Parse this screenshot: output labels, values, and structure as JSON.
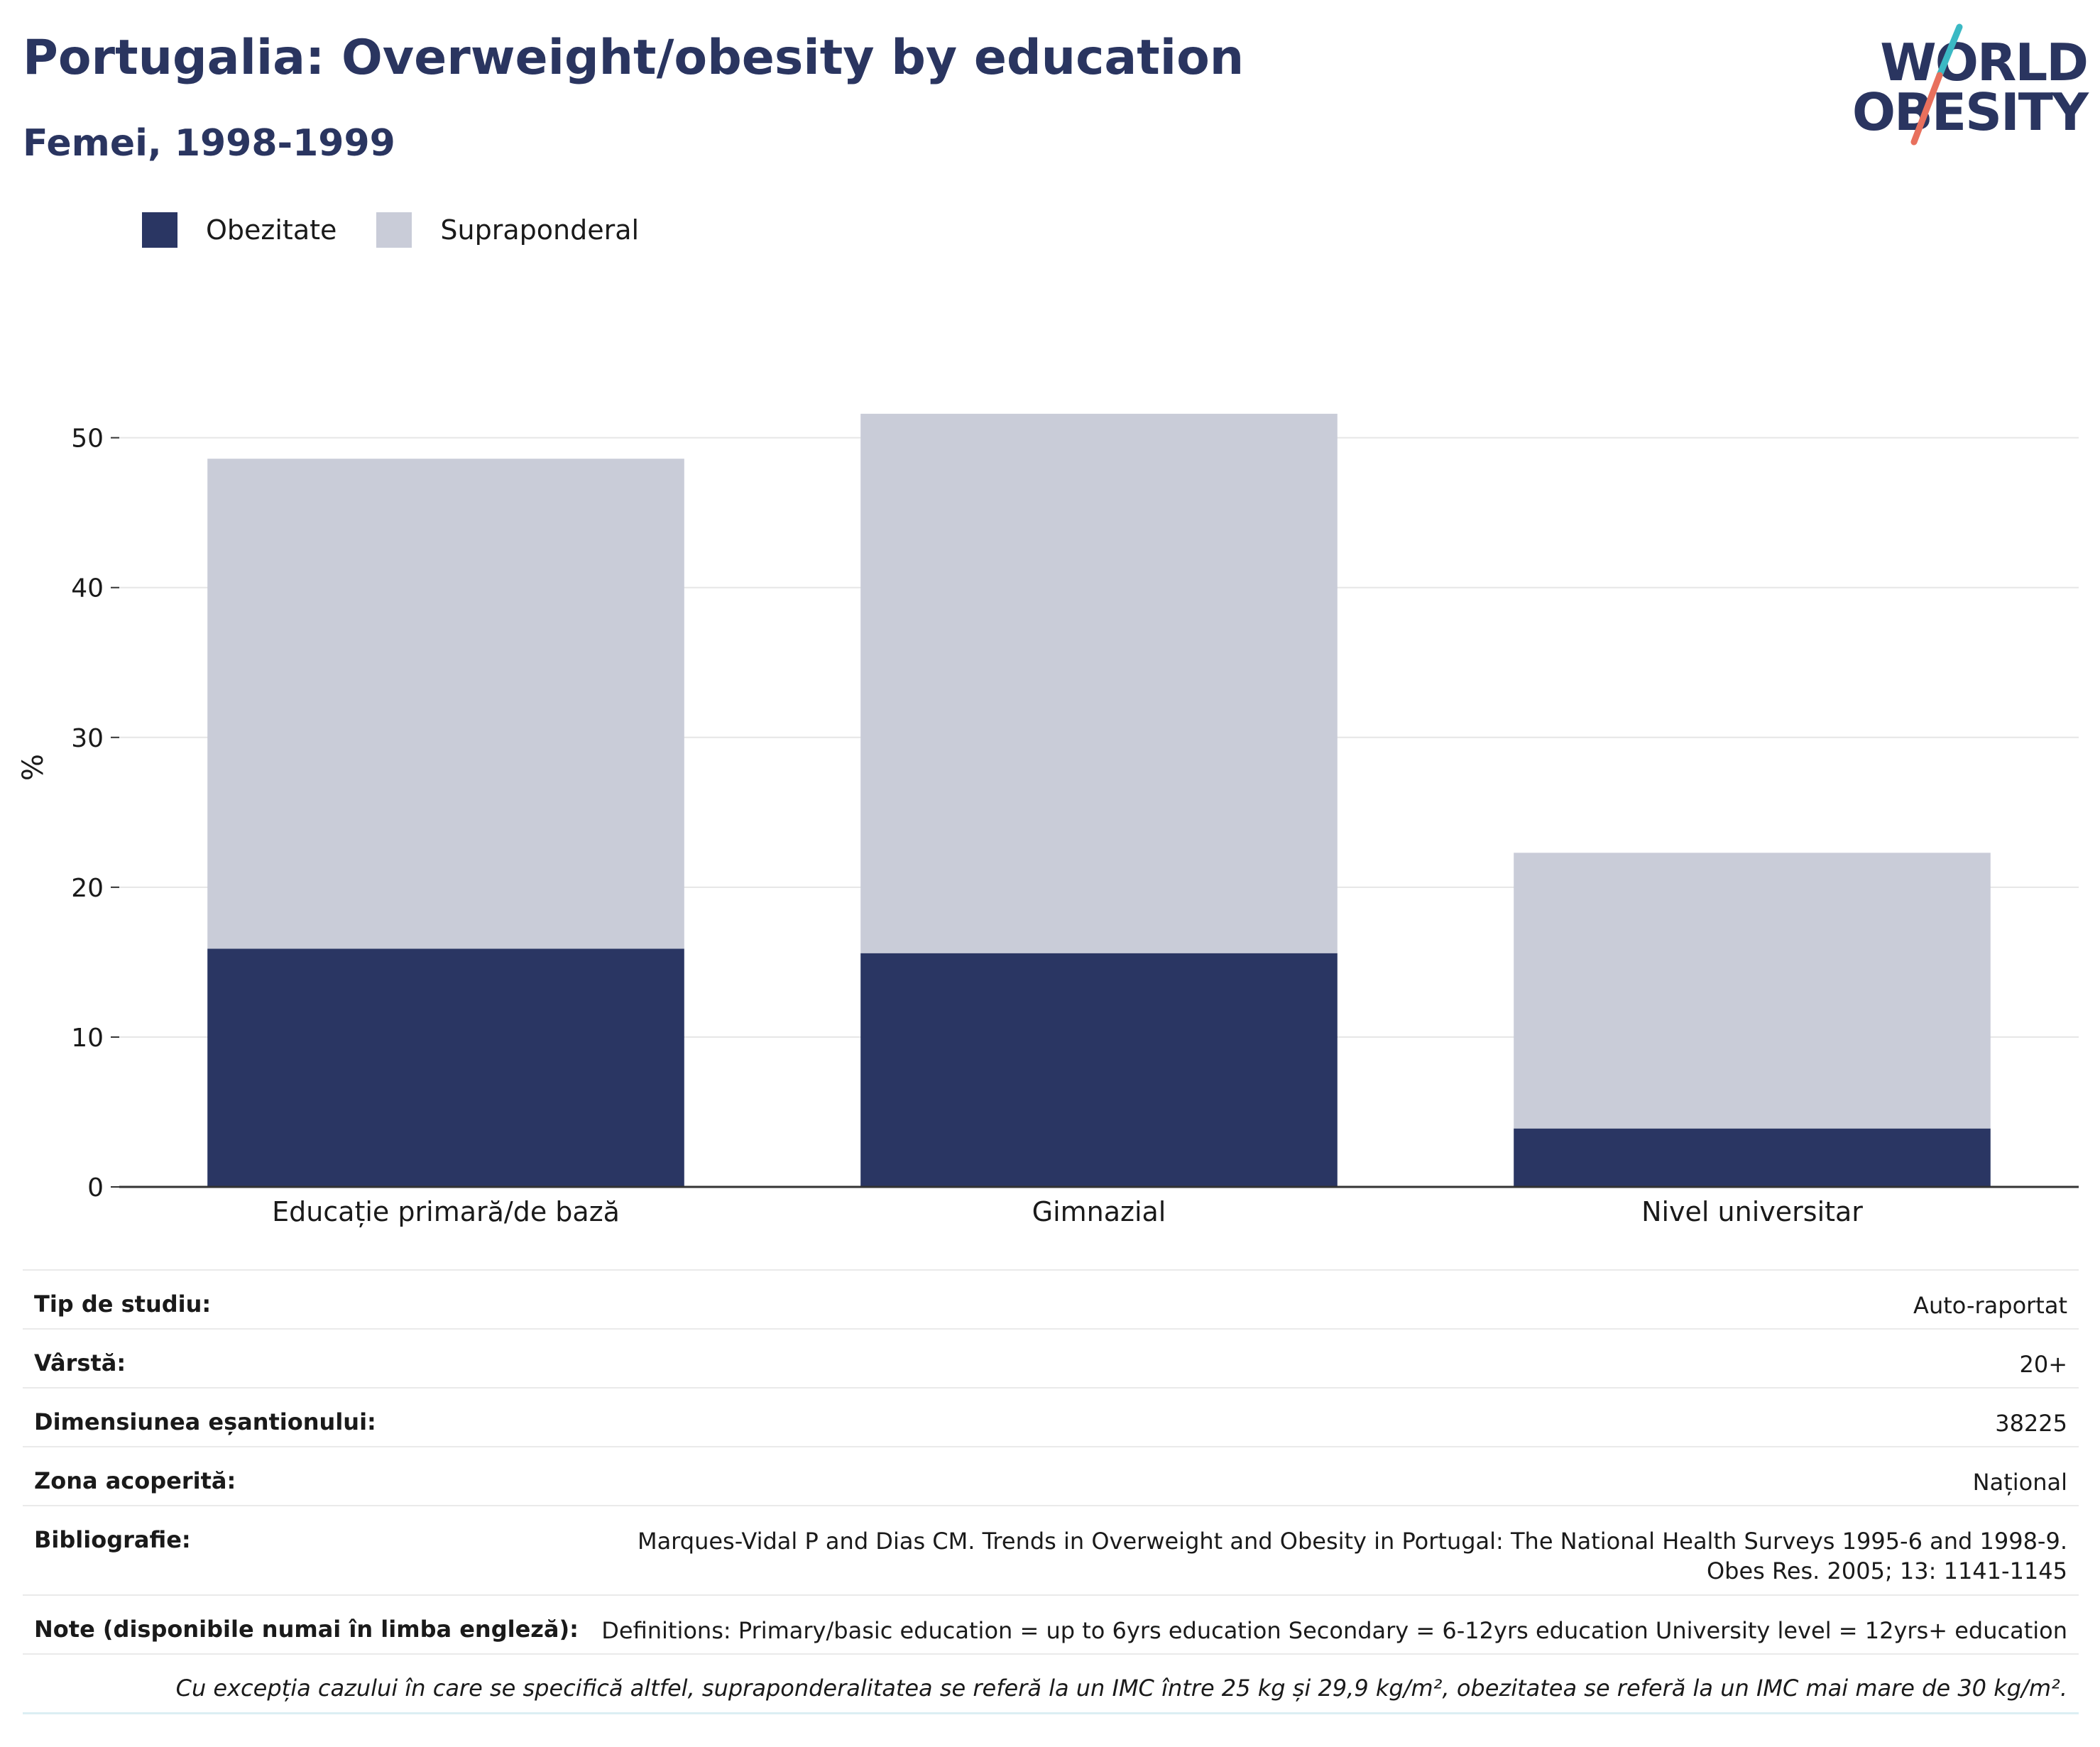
{
  "header": {
    "title": "Portugalia: Overweight/obesity by education",
    "subtitle": "Femei, 1998-1999"
  },
  "logo": {
    "line1": "WORLD",
    "line2": "OBESITY",
    "colors": {
      "text": "#2a3560",
      "slash_teal": "#3bb9c4",
      "slash_coral": "#e8705d"
    }
  },
  "legend": [
    {
      "label": "Obezitate",
      "color": "#2a3663"
    },
    {
      "label": "Supraponderal",
      "color": "#c9ccd8"
    }
  ],
  "chart_data": {
    "type": "bar",
    "stacked": true,
    "categories": [
      "Educație primară/de bază",
      "Gimnazial",
      "Nivel universitar"
    ],
    "series": [
      {
        "name": "Obezitate",
        "color": "#2a3663",
        "values": [
          15.9,
          15.6,
          3.9
        ]
      },
      {
        "name": "Supraponderal",
        "color": "#c9ccd8",
        "values": [
          32.7,
          36.0,
          18.4
        ]
      }
    ],
    "totals": [
      48.6,
      51.6,
      22.3
    ],
    "ylabel": "%",
    "xlabel": "",
    "ylim": [
      0,
      56
    ],
    "yticks": [
      0,
      10,
      20,
      30,
      40,
      50
    ],
    "grid": true,
    "legend_position": "top-left"
  },
  "info": [
    {
      "label": "Tip de studiu:",
      "value": "Auto-raportat"
    },
    {
      "label": "Vârstă:",
      "value": "20+"
    },
    {
      "label": "Dimensiunea eșantionului:",
      "value": "38225"
    },
    {
      "label": "Zona acoperită:",
      "value": "Național"
    },
    {
      "label": "Bibliografie:",
      "value": "Marques-Vidal P and Dias CM. Trends in Overweight and Obesity in Portugal: The National Health Surveys 1995-6 and 1998-9. Obes Res. 2005; 13: 1141-1145"
    },
    {
      "label": "Note (disponibile numai în limba engleză):",
      "value": "Definitions: Primary/basic education = up to 6yrs education Secondary = 6-12yrs education University level = 12yrs+ education"
    }
  ],
  "footnote": "Cu excepția cazului în care se specifică altfel, supraponderalitatea se referă la un IMC între 25 kg și 29,9 kg/m², obezitatea se referă la un IMC mai mare de 30 kg/m²."
}
